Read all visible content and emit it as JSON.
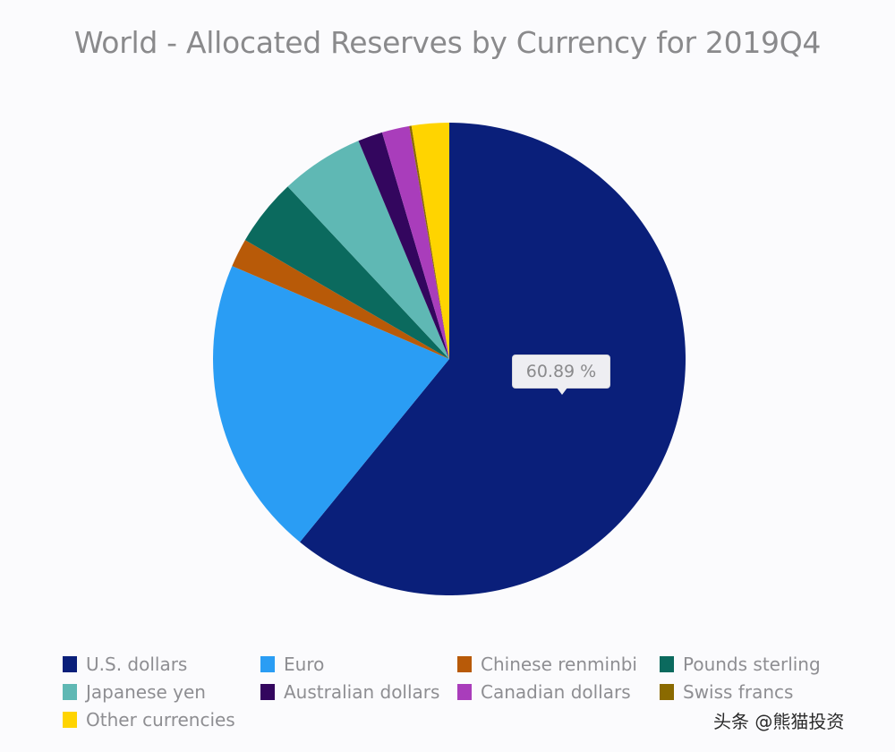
{
  "chart_data": {
    "type": "pie",
    "title": "World - Allocated Reserves by Currency for 2019Q4",
    "categories": [
      "U.S. dollars",
      "Euro",
      "Chinese renminbi",
      "Pounds sterling",
      "Japanese yen",
      "Australian dollars",
      "Canadian dollars",
      "Swiss francs",
      "Other currencies"
    ],
    "values": [
      60.89,
      20.54,
      1.96,
      4.62,
      5.7,
      1.69,
      1.88,
      0.15,
      2.56
    ],
    "colors": [
      "#0a1f7a",
      "#2a9df4",
      "#b85a08",
      "#0b6a5e",
      "#5fb8b4",
      "#33065e",
      "#a93dbb",
      "#8a6a00",
      "#ffd400"
    ],
    "unit": "%",
    "start_angle_deg": 0,
    "direction": "clockwise",
    "annotations": [
      {
        "slice": "U.S. dollars",
        "label": "60.89 %"
      }
    ],
    "legend_position": "bottom"
  },
  "tooltip": {
    "label": "60.89 %"
  },
  "legend": {
    "items": [
      {
        "label": "U.S. dollars",
        "color": "#0a1f7a"
      },
      {
        "label": "Euro",
        "color": "#2a9df4"
      },
      {
        "label": "Chinese renminbi",
        "color": "#b85a08"
      },
      {
        "label": "Pounds sterling",
        "color": "#0b6a5e"
      },
      {
        "label": "Japanese yen",
        "color": "#5fb8b4"
      },
      {
        "label": "Australian dollars",
        "color": "#33065e"
      },
      {
        "label": "Canadian dollars",
        "color": "#a93dbb"
      },
      {
        "label": "Swiss francs",
        "color": "#8a6a00"
      },
      {
        "label": "Other currencies",
        "color": "#ffd400"
      }
    ]
  },
  "watermark": "头条 @熊猫投资"
}
